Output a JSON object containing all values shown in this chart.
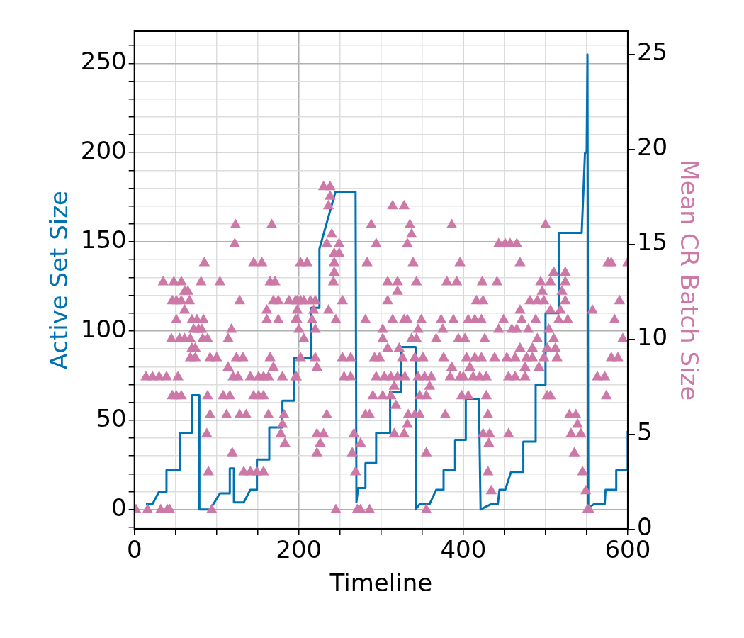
{
  "chart_data": {
    "type": "line",
    "xlabel": "Timeline",
    "ylabel": "Active Set Size",
    "y2label": "Mean CR Batch Size",
    "xlim": [
      0,
      600
    ],
    "ylim": [
      -11,
      268
    ],
    "y2lim": [
      0,
      26.2
    ],
    "xticks": [
      0,
      {
        "value": 50,
        "label": null
      },
      {
        "value": 100,
        "label": null
      },
      {
        "value": 150,
        "label": null
      },
      200,
      {
        "value": 250,
        "label": null
      },
      {
        "value": 300,
        "label": null
      },
      {
        "value": 350,
        "label": null
      },
      400,
      {
        "value": 450,
        "label": null
      },
      {
        "value": 500,
        "label": null
      },
      {
        "value": 550,
        "label": null
      },
      600
    ],
    "yticks": [
      {
        "value": -10,
        "label": null
      },
      0,
      {
        "value": 10,
        "label": null
      },
      {
        "value": 20,
        "label": null
      },
      {
        "value": 30,
        "label": null
      },
      {
        "value": 40,
        "label": null
      },
      50,
      {
        "value": 60,
        "label": null
      },
      {
        "value": 70,
        "label": null
      },
      {
        "value": 80,
        "label": null
      },
      {
        "value": 90,
        "label": null
      },
      100,
      {
        "value": 110,
        "label": null
      },
      {
        "value": 120,
        "label": null
      },
      {
        "value": 130,
        "label": null
      },
      {
        "value": 140,
        "label": null
      },
      150,
      {
        "value": 160,
        "label": null
      },
      {
        "value": 170,
        "label": null
      },
      {
        "value": 180,
        "label": null
      },
      {
        "value": 190,
        "label": null
      },
      200,
      {
        "value": 210,
        "label": null
      },
      {
        "value": 220,
        "label": null
      },
      {
        "value": 230,
        "label": null
      },
      {
        "value": 240,
        "label": null
      },
      250,
      {
        "value": 260,
        "label": null
      }
    ],
    "y2ticks": [
      0,
      5,
      10,
      15,
      20,
      25
    ],
    "grid": true,
    "series": [
      {
        "color": "#0072b2",
        "line_style": "solid",
        "marker": "none",
        "x": [
          14,
          22,
          30,
          39,
          39,
          55,
          55,
          70,
          70,
          79,
          79,
          92,
          104,
          116,
          116,
          121,
          121,
          133,
          141,
          149,
          149,
          164,
          164,
          180,
          180,
          194,
          194,
          215,
          215,
          225,
          225,
          244.5,
          269,
          270,
          272,
          281,
          281,
          294,
          294,
          311,
          311,
          324.5,
          324.5,
          342,
          342,
          347,
          359,
          367,
          376,
          376,
          390,
          390,
          403,
          403,
          419,
          421,
          434,
          442,
          444,
          451,
          458,
          473,
          473,
          488,
          488,
          500,
          500,
          516,
          516,
          544,
          548,
          550,
          551,
          552,
          559,
          572,
          573,
          586,
          586,
          600,
          600
        ],
        "values": [
          3,
          3,
          10,
          10,
          22,
          22,
          43,
          43,
          64,
          64,
          0,
          0,
          9,
          9,
          23,
          23,
          4,
          4,
          11,
          11,
          28,
          28,
          46,
          46,
          61,
          61,
          85,
          85,
          113,
          113,
          146,
          178,
          178,
          4,
          12,
          12,
          26,
          26,
          43,
          43,
          66,
          66,
          91,
          91,
          0,
          3,
          3,
          11,
          11,
          22,
          22,
          39,
          39,
          62,
          62,
          0,
          3,
          3,
          11,
          11,
          21,
          21,
          38,
          38,
          70,
          70,
          110,
          110,
          155,
          155,
          200,
          200,
          255,
          1,
          3,
          3,
          11,
          11,
          22,
          22,
          44
        ]
      },
      {
        "type": "scatter",
        "axis": "y2",
        "color": "#cc79a7",
        "marker": "triangle",
        "x": [
          2,
          16,
          32,
          40,
          43,
          94,
          245,
          271,
          275,
          286,
          355,
          551,
          553,
          434,
          549,
          90,
          133,
          141,
          149,
          157,
          269,
          430,
          545,
          119,
          222,
          265,
          355,
          535,
          183,
          226,
          275,
          431,
          88,
          178,
          222,
          230,
          267,
          316,
          328,
          424,
          432,
          455,
          531,
          543,
          180,
          332,
          539,
          92,
          112,
          128,
          136,
          163,
          182,
          234,
          281,
          286,
          333,
          341,
          347,
          378,
          430,
          529,
          537,
          318,
          46,
          51,
          57,
          89,
          108,
          116,
          145,
          151,
          157,
          290,
          302,
          312,
          347,
          355,
          398,
          406,
          428,
          502,
          506,
          574,
          316,
          359,
          14,
          22,
          30,
          39,
          53,
          120,
          126,
          141,
          151,
          157,
          163,
          180,
          196,
          197,
          255,
          263,
          294,
          304,
          312,
          320,
          329,
          345,
          353,
          361,
          384,
          396,
          400,
          412,
          420,
          428,
          455,
          463,
          475,
          563,
          572,
          114,
          169,
          222,
          386,
          408,
          475,
          492,
          68,
          74,
          92,
          100,
          124,
          132,
          165,
          202,
          220,
          253,
          263,
          292,
          298,
          326,
          341,
          351,
          376,
          404,
          414,
          422,
          438,
          453,
          463,
          477,
          484,
          498,
          514,
          580,
          588,
          70,
          74,
          308,
          322,
          469,
          484,
          502,
          512,
          45,
          55,
          61,
          68,
          83,
          89,
          114,
          206,
          302,
          337,
          343,
          367,
          394,
          402,
          426,
          490,
          510,
          594,
          72,
          78,
          82,
          118,
          200,
          220,
          302,
          345,
          375,
          443,
          459,
          465,
          479,
          504,
          51,
          70,
          76,
          84,
          161,
          175,
          196,
          198,
          216,
          245,
          281,
          314,
          328,
          332,
          349,
          373,
          388,
          406,
          414,
          422,
          449,
          471,
          488,
          516,
          527,
          584,
          61,
          161,
          198,
          218,
          236,
          469,
          506,
          518,
          557,
          46,
          51,
          57,
          67,
          128,
          169,
          175,
          188,
          196,
          202,
          198,
          206,
          214,
          220,
          253,
          308,
          416,
          424,
          481,
          490,
          498,
          524,
          590,
          61,
          65,
          320,
          496,
          520,
          35,
          48,
          57,
          81,
          104,
          165,
          171,
          242,
          308,
          320,
          343,
          380,
          392,
          423,
          441,
          494,
          506,
          524,
          243,
          510,
          524,
          85,
          145,
          155,
          202,
          210,
          243,
          283,
          339,
          396,
          469,
          576,
          580,
          600,
          243,
          249,
          122,
          234,
          249,
          294,
          332,
          443,
          451,
          457,
          465,
          240,
          337,
          123,
          167,
          288,
          335,
          386,
          500,
          236,
          314,
          328,
          238,
          230,
          238
        ],
        "values": [
          1,
          1,
          1,
          1,
          1,
          1,
          1,
          1,
          1,
          1,
          1,
          1,
          1,
          2,
          2,
          3,
          3,
          3,
          3,
          3,
          3,
          3,
          3,
          4,
          4,
          4,
          4,
          4,
          4.5,
          4.5,
          4.5,
          4.5,
          5,
          5,
          5,
          5,
          5,
          5,
          5,
          5,
          5,
          5,
          5,
          5,
          5.5,
          5.5,
          5.5,
          6,
          6,
          6,
          6,
          6,
          6,
          6,
          6,
          6,
          6,
          6,
          6,
          6,
          6,
          6,
          6,
          6.5,
          7,
          7,
          7,
          7,
          7,
          7,
          7,
          7,
          7,
          7,
          7,
          7,
          7,
          7,
          7,
          7,
          7,
          7,
          7,
          7,
          7.5,
          7.5,
          8,
          8,
          8,
          8,
          8,
          8,
          8,
          8,
          8,
          8,
          8,
          8,
          8,
          8,
          8,
          8,
          8,
          8,
          8,
          8,
          8,
          8,
          8,
          8,
          8,
          8,
          8,
          8,
          8,
          8,
          8,
          8,
          8,
          8,
          8,
          8.5,
          8.5,
          8.5,
          8.5,
          8.5,
          8.5,
          8.5,
          9,
          9,
          9,
          9,
          9,
          9,
          9,
          9,
          9,
          9,
          9,
          9,
          9,
          9,
          9,
          9,
          9,
          9,
          9,
          9,
          9,
          9,
          9,
          9,
          9,
          9,
          9,
          9,
          9,
          9.5,
          9.5,
          9.5,
          9.5,
          9.5,
          9.5,
          9.5,
          9.5,
          10,
          10,
          10,
          10,
          10,
          10,
          10,
          10,
          10,
          10,
          10,
          10,
          10,
          10,
          10,
          10,
          10,
          10,
          10.5,
          10.5,
          10.5,
          10.5,
          10.5,
          10.5,
          10.5,
          10.5,
          10.5,
          10.5,
          10.5,
          10.5,
          10.5,
          10.5,
          11,
          11,
          11,
          11,
          11,
          11,
          11,
          11,
          11,
          11,
          11,
          11,
          11,
          11,
          11,
          11,
          11,
          11,
          11,
          11,
          11,
          11,
          11,
          11,
          11,
          11,
          11.5,
          11.5,
          11.5,
          11.5,
          11.5,
          11.5,
          11.5,
          11.5,
          11.5,
          12,
          12,
          12,
          12,
          12,
          12,
          12,
          12,
          12,
          12,
          12,
          12,
          12,
          12,
          12,
          12,
          12,
          12,
          12,
          12,
          12,
          12,
          12,
          12.5,
          12.5,
          12.5,
          12.5,
          12.5,
          13,
          13,
          13,
          13,
          13,
          13,
          13,
          13,
          13,
          13,
          13,
          13,
          13,
          13,
          13,
          13,
          13,
          13,
          13.5,
          13.5,
          13.5,
          14,
          14,
          14,
          14,
          14,
          14,
          14,
          14,
          14,
          14,
          14,
          14,
          14,
          14.5,
          14.5,
          15,
          15,
          15,
          15,
          15,
          15,
          15,
          15,
          15,
          15.5,
          15.5,
          16,
          16,
          16,
          16,
          16,
          16,
          17,
          17,
          17,
          17.5,
          18,
          18
        ]
      }
    ]
  }
}
